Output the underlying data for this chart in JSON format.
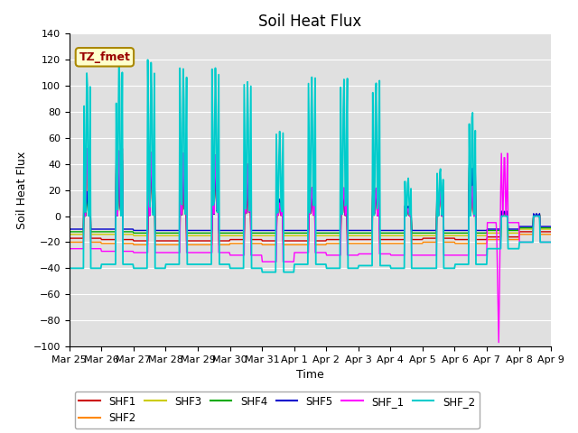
{
  "title": "Soil Heat Flux",
  "xlabel": "Time",
  "ylabel": "Soil Heat Flux",
  "ylim": [
    -100,
    140
  ],
  "yticks": [
    -100,
    -80,
    -60,
    -40,
    -20,
    0,
    20,
    40,
    60,
    80,
    100,
    120,
    140
  ],
  "x_labels": [
    "Mar 25",
    "Mar 26",
    "Mar 27",
    "Mar 28",
    "Mar 29",
    "Mar 30",
    "Mar 31",
    "Apr 1",
    "Apr 2",
    "Apr 3",
    "Apr 4",
    "Apr 5",
    "Apr 6",
    "Apr 7",
    "Apr 8",
    "Apr 9"
  ],
  "series": [
    "SHF1",
    "SHF2",
    "SHF3",
    "SHF4",
    "SHF5",
    "SHF_1",
    "SHF_2"
  ],
  "colors": {
    "SHF1": "#cc0000",
    "SHF2": "#ff8800",
    "SHF3": "#cccc00",
    "SHF4": "#00aa00",
    "SHF5": "#0000cc",
    "SHF_1": "#ff00ff",
    "SHF_2": "#00cccc"
  },
  "annotation_text": "TZ_fmet",
  "annotation_color": "#990000",
  "annotation_bg": "#ffffcc",
  "annotation_border": "#aa8800",
  "bg_color": "#e0e0e0",
  "title_fontsize": 12,
  "axis_label_fontsize": 9,
  "tick_fontsize": 8
}
